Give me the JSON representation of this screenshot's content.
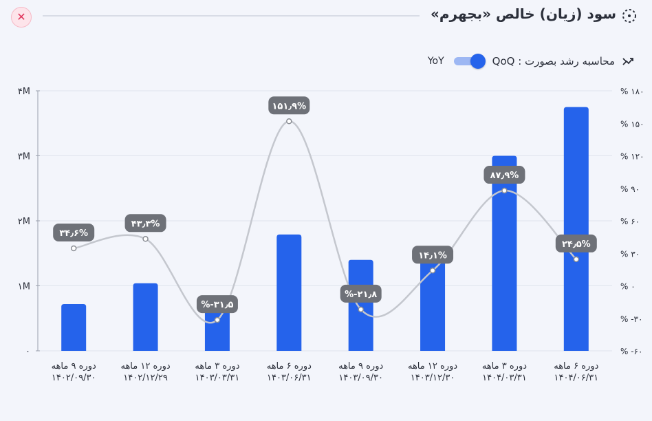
{
  "header": {
    "title": "سود (زیان) خالص «بجهرم»",
    "close_icon": "close-icon",
    "title_icon": "dotted-circle-icon"
  },
  "toggle": {
    "label": "محاسبه رشد بصورت : QoQ",
    "alt_label": "YoY",
    "state": "QoQ",
    "icon": "trend-arrows-icon"
  },
  "colors": {
    "bar": "#2563eb",
    "line": "#c4c7ce",
    "label_bg": "#6e7178",
    "grid": "#dfe3ec",
    "close": "#e0335a"
  },
  "chart_data": {
    "type": "bar",
    "categories": [
      [
        "دوره ۹ ماهه",
        "۱۴۰۲/۰۹/۳۰"
      ],
      [
        "دوره ۱۲ ماهه",
        "۱۴۰۲/۱۲/۲۹"
      ],
      [
        "دوره ۳ ماهه",
        "۱۴۰۳/۰۳/۳۱"
      ],
      [
        "دوره ۶ ماهه",
        "۱۴۰۳/۰۶/۳۱"
      ],
      [
        "دوره ۹ ماهه",
        "۱۴۰۳/۰۹/۳۰"
      ],
      [
        "دوره ۱۲ ماهه",
        "۱۴۰۳/۱۲/۳۰"
      ],
      [
        "دوره ۳ ماهه",
        "۱۴۰۴/۰۳/۳۱"
      ],
      [
        "دوره ۶ ماهه",
        "۱۴۰۴/۰۶/۳۱"
      ]
    ],
    "values": [
      720000,
      1040000,
      680000,
      1790000,
      1400000,
      1580000,
      3000000,
      3750000
    ],
    "growth": [
      34.6,
      43.3,
      -31.5,
      151.9,
      -21.8,
      14.1,
      87.9,
      24.5
    ],
    "growth_labels": [
      "۳۴٫۶%",
      "۴۳٫۳%",
      "%-۳۱٫۵",
      "۱۵۱٫۹%",
      "%-۲۱٫۸",
      "۱۴٫۱%",
      "۸۷٫۹%",
      "۲۴٫۵%"
    ],
    "ylim": [
      0,
      4000000
    ],
    "y_ticks": [
      0,
      1000000,
      2000000,
      3000000,
      4000000
    ],
    "y_tick_labels": [
      "۰",
      "۱M",
      "۲M",
      "۳M",
      "۴M"
    ],
    "y2lim": [
      -60,
      180
    ],
    "y2_ticks": [
      -60,
      -30,
      0,
      30,
      60,
      90,
      120,
      150,
      180
    ],
    "y2_tick_labels": [
      "% -۶۰",
      "% -۳۰",
      "% ۰",
      "% ۳۰",
      "% ۶۰",
      "% ۹۰",
      "% ۱۲۰",
      "% ۱۵۰",
      "% ۱۸۰"
    ],
    "grid": true
  }
}
